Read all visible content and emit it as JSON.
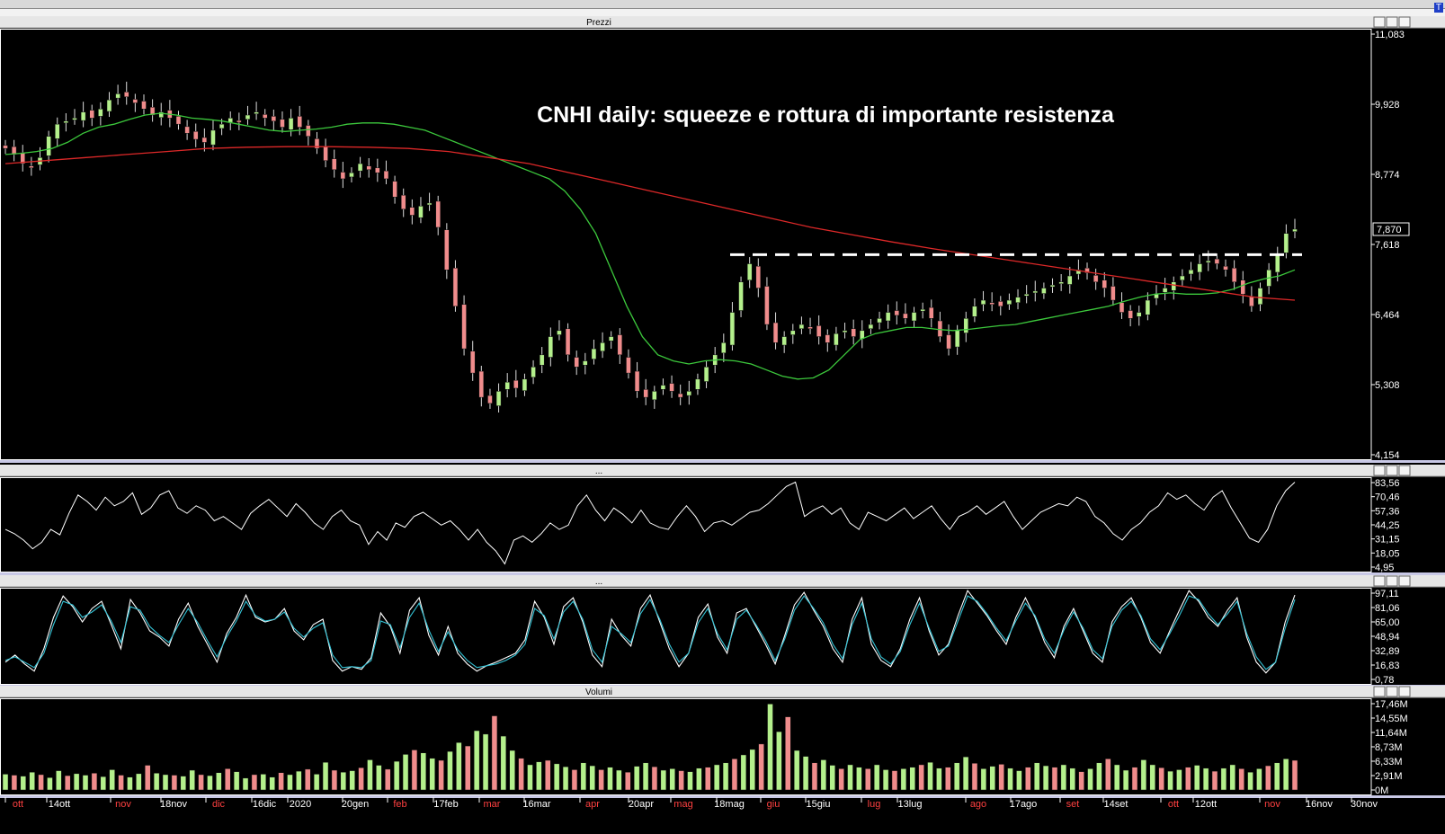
{
  "window": {
    "corner_label": "T",
    "panels": [
      {
        "id": "prices",
        "title": "Prezzi"
      },
      {
        "id": "osc1",
        "title": "..."
      },
      {
        "id": "osc2",
        "title": "..."
      },
      {
        "id": "volume",
        "title": "Volumi"
      }
    ]
  },
  "colors": {
    "background": "#000000",
    "panel_border": "#ffffff",
    "title_bar": "#e6e6e6",
    "candle_up": "#b4f08c",
    "candle_down": "#f08c8c",
    "ma_short": "#3cc83c",
    "ma_long": "#dc2828",
    "stoch_k": "#ffffff",
    "stoch_d": "#33c3d6",
    "month_label_red": "#ff4040",
    "date_label_white": "#ffffff"
  },
  "chart_data": [
    {
      "type": "candlestick",
      "title": "CNHI daily: squeeze e rottura di importante resistenza",
      "last_price_label": "7,870",
      "y_ticks": [
        "11,083",
        "9,928",
        "8,774",
        "7,618",
        "6,464",
        "5,308",
        "4,154"
      ],
      "ylim": [
        4.154,
        11.083
      ],
      "resistance_level": 7.45,
      "close_series": [
        9.2,
        9.1,
        8.95,
        8.9,
        9.05,
        9.4,
        9.6,
        9.65,
        9.7,
        9.8,
        9.7,
        9.85,
        10.0,
        10.1,
        10.05,
        9.95,
        9.85,
        9.75,
        9.8,
        9.7,
        9.6,
        9.45,
        9.35,
        9.3,
        9.5,
        9.6,
        9.7,
        9.65,
        9.75,
        9.8,
        9.7,
        9.65,
        9.55,
        9.7,
        9.55,
        9.4,
        9.2,
        9.0,
        8.85,
        8.7,
        8.8,
        8.95,
        8.85,
        8.8,
        8.7,
        8.4,
        8.2,
        8.1,
        8.25,
        8.3,
        7.9,
        7.2,
        6.6,
        5.9,
        5.5,
        5.1,
        5.0,
        5.2,
        5.35,
        5.25,
        5.4,
        5.6,
        5.8,
        6.1,
        6.2,
        5.8,
        5.6,
        5.7,
        5.9,
        6.0,
        6.1,
        5.8,
        5.5,
        5.2,
        5.1,
        5.2,
        5.3,
        5.2,
        5.1,
        5.2,
        5.4,
        5.6,
        5.8,
        6.0,
        6.5,
        7.0,
        7.3,
        6.9,
        6.3,
        6.0,
        6.1,
        6.2,
        6.3,
        6.25,
        6.1,
        6.0,
        6.15,
        6.2,
        6.1,
        6.2,
        6.3,
        6.4,
        6.5,
        6.45,
        6.4,
        6.5,
        6.55,
        6.4,
        6.1,
        5.9,
        6.2,
        6.4,
        6.6,
        6.7,
        6.65,
        6.6,
        6.7,
        6.75,
        6.8,
        6.85,
        6.9,
        6.95,
        7.0,
        7.1,
        7.2,
        7.15,
        7.0,
        6.9,
        6.7,
        6.5,
        6.4,
        6.5,
        6.7,
        6.8,
        6.9,
        7.0,
        7.1,
        7.2,
        7.3,
        7.35,
        7.3,
        7.2,
        7.0,
        6.8,
        6.6,
        6.9,
        7.2,
        7.45,
        7.8,
        7.87
      ],
      "ma_short_series": [
        9.1,
        9.12,
        9.15,
        9.2,
        9.3,
        9.45,
        9.55,
        9.6,
        9.68,
        9.75,
        9.78,
        9.75,
        9.7,
        9.68,
        9.65,
        9.6,
        9.55,
        9.5,
        9.48,
        9.5,
        9.52,
        9.55,
        9.6,
        9.62,
        9.62,
        9.6,
        9.55,
        9.5,
        9.4,
        9.3,
        9.2,
        9.1,
        9.0,
        8.9,
        8.8,
        8.7,
        8.5,
        8.2,
        7.8,
        7.2,
        6.6,
        6.1,
        5.8,
        5.7,
        5.65,
        5.7,
        5.72,
        5.7,
        5.65,
        5.55,
        5.45,
        5.4,
        5.42,
        5.55,
        5.8,
        6.05,
        6.15,
        6.2,
        6.25,
        6.25,
        6.22,
        6.2,
        6.22,
        6.25,
        6.28,
        6.3,
        6.35,
        6.4,
        6.45,
        6.5,
        6.55,
        6.6,
        6.68,
        6.75,
        6.8,
        6.82,
        6.8,
        6.8,
        6.82,
        6.88,
        6.98,
        7.05,
        7.1,
        7.2
      ],
      "ma_long_series": [
        8.95,
        9.0,
        9.05,
        9.1,
        9.15,
        9.2,
        9.22,
        9.23,
        9.23,
        9.22,
        9.2,
        9.15,
        9.05,
        8.95,
        8.8,
        8.65,
        8.5,
        8.35,
        8.2,
        8.05,
        7.9,
        7.78,
        7.66,
        7.55,
        7.45,
        7.35,
        7.25,
        7.15,
        7.05,
        6.95,
        6.85,
        6.75,
        6.7
      ],
      "x_labels": [
        {
          "text": "ott",
          "color": "red"
        },
        {
          "text": "14ott",
          "color": "white"
        },
        {
          "text": "nov",
          "color": "red"
        },
        {
          "text": "18nov",
          "color": "white"
        },
        {
          "text": "dic",
          "color": "red"
        },
        {
          "text": "16dic",
          "color": "white"
        },
        {
          "text": "2020",
          "color": "white"
        },
        {
          "text": "20gen",
          "color": "white"
        },
        {
          "text": "feb",
          "color": "red"
        },
        {
          "text": "17feb",
          "color": "white"
        },
        {
          "text": "mar",
          "color": "red"
        },
        {
          "text": "16mar",
          "color": "white"
        },
        {
          "text": "apr",
          "color": "red"
        },
        {
          "text": "20apr",
          "color": "white"
        },
        {
          "text": "mag",
          "color": "red"
        },
        {
          "text": "18mag",
          "color": "white"
        },
        {
          "text": "giu",
          "color": "red"
        },
        {
          "text": "15giu",
          "color": "white"
        },
        {
          "text": "lug",
          "color": "red"
        },
        {
          "text": "13lug",
          "color": "white"
        },
        {
          "text": "ago",
          "color": "red"
        },
        {
          "text": "17ago",
          "color": "white"
        },
        {
          "text": "set",
          "color": "red"
        },
        {
          "text": "14set",
          "color": "white"
        },
        {
          "text": "ott",
          "color": "red"
        },
        {
          "text": "12ott",
          "color": "white"
        },
        {
          "text": "nov",
          "color": "red"
        },
        {
          "text": "16nov",
          "color": "white"
        },
        {
          "text": "30nov",
          "color": "white"
        }
      ]
    },
    {
      "type": "line",
      "y_ticks": [
        "83,56",
        "70,46",
        "57,36",
        "44,25",
        "31,15",
        "18,05",
        "4,95"
      ],
      "ylim": [
        4.95,
        83.56
      ],
      "values": [
        40,
        36,
        30,
        22,
        28,
        40,
        35,
        55,
        72,
        66,
        58,
        70,
        62,
        66,
        74,
        54,
        60,
        72,
        76,
        60,
        55,
        62,
        58,
        48,
        52,
        46,
        40,
        55,
        62,
        68,
        60,
        52,
        64,
        56,
        46,
        40,
        52,
        58,
        48,
        44,
        26,
        38,
        30,
        46,
        42,
        52,
        56,
        50,
        44,
        48,
        40,
        30,
        40,
        28,
        20,
        8,
        30,
        34,
        28,
        36,
        46,
        40,
        44,
        62,
        72,
        58,
        48,
        60,
        54,
        46,
        58,
        46,
        42,
        40,
        52,
        62,
        52,
        38,
        46,
        48,
        44,
        50,
        56,
        58,
        64,
        72,
        80,
        84,
        52,
        58,
        62,
        54,
        60,
        46,
        40,
        56,
        52,
        48,
        54,
        60,
        50,
        56,
        62,
        50,
        40,
        52,
        56,
        62,
        54,
        60,
        66,
        52,
        40,
        48,
        56,
        60,
        64,
        62,
        70,
        66,
        52,
        46,
        36,
        30,
        40,
        46,
        56,
        62,
        74,
        68,
        72,
        64,
        58,
        70,
        76,
        60,
        46,
        32,
        28,
        40,
        62,
        76,
        84
      ]
    },
    {
      "type": "line",
      "y_ticks": [
        "97,11",
        "81,06",
        "65,00",
        "48,94",
        "32,89",
        "16,83",
        "0,78"
      ],
      "ylim": [
        0.78,
        97.11
      ],
      "series": [
        {
          "values": [
            20,
            28,
            18,
            10,
            35,
            70,
            94,
            82,
            65,
            80,
            88,
            62,
            35,
            90,
            75,
            55,
            48,
            38,
            68,
            86,
            60,
            40,
            20,
            52,
            70,
            95,
            70,
            65,
            68,
            80,
            55,
            45,
            62,
            68,
            22,
            10,
            15,
            12,
            25,
            75,
            60,
            30,
            78,
            92,
            50,
            28,
            60,
            30,
            18,
            10,
            16,
            20,
            25,
            30,
            45,
            88,
            70,
            40,
            82,
            92,
            65,
            28,
            15,
            68,
            50,
            38,
            80,
            95,
            65,
            35,
            15,
            30,
            70,
            85,
            48,
            30,
            75,
            80,
            60,
            40,
            18,
            50,
            84,
            98,
            78,
            60,
            35,
            20,
            68,
            92,
            40,
            22,
            15,
            35,
            68,
            92,
            55,
            28,
            40,
            72,
            100,
            86,
            72,
            55,
            40,
            70,
            92,
            70,
            42,
            25,
            60,
            80,
            55,
            30,
            20,
            65,
            82,
            92,
            70,
            42,
            30,
            55,
            78,
            100,
            88,
            70,
            60,
            78,
            92,
            48,
            20,
            8,
            20,
            65,
            95
          ]
        },
        {
          "values": [
            22,
            26,
            20,
            14,
            30,
            62,
            88,
            84,
            70,
            76,
            84,
            66,
            42,
            82,
            78,
            60,
            50,
            42,
            62,
            80,
            64,
            44,
            26,
            48,
            66,
            88,
            72,
            66,
            68,
            76,
            58,
            48,
            58,
            64,
            28,
            14,
            15,
            14,
            22,
            66,
            62,
            36,
            70,
            86,
            56,
            32,
            54,
            34,
            22,
            14,
            16,
            18,
            22,
            28,
            40,
            80,
            72,
            46,
            76,
            88,
            68,
            34,
            20,
            60,
            52,
            42,
            74,
            90,
            68,
            40,
            20,
            30,
            64,
            80,
            52,
            34,
            68,
            78,
            62,
            44,
            22,
            46,
            78,
            94,
            80,
            64,
            40,
            24,
            62,
            86,
            46,
            26,
            18,
            32,
            62,
            86,
            58,
            32,
            38,
            66,
            94,
            88,
            74,
            58,
            44,
            66,
            86,
            72,
            46,
            30,
            56,
            76,
            58,
            34,
            24,
            60,
            78,
            88,
            72,
            46,
            34,
            52,
            72,
            94,
            90,
            74,
            62,
            74,
            88,
            52,
            26,
            12,
            20,
            58,
            90
          ]
        }
      ]
    },
    {
      "type": "bar",
      "y_ticks": [
        "17,46M",
        "14,55M",
        "11,64M",
        "8,73M",
        "6,33M",
        "2,91M",
        "0M"
      ],
      "ylim": [
        0,
        17.46
      ],
      "values": [
        3.2,
        3.0,
        2.8,
        3.6,
        3.1,
        2.5,
        3.9,
        2.9,
        3.3,
        3.0,
        3.4,
        2.7,
        4.1,
        3.0,
        2.6,
        3.3,
        5.0,
        3.4,
        3.1,
        3.0,
        2.8,
        4.0,
        3.1,
        2.9,
        3.5,
        4.3,
        3.7,
        2.4,
        3.1,
        3.2,
        2.6,
        3.5,
        3.1,
        3.8,
        4.2,
        3.2,
        5.6,
        4.0,
        3.6,
        3.9,
        4.5,
        6.1,
        5.0,
        4.2,
        5.8,
        7.2,
        8.1,
        7.5,
        6.4,
        6.0,
        7.8,
        9.6,
        8.9,
        12.0,
        11.3,
        15.0,
        10.9,
        8.0,
        6.4,
        5.1,
        5.7,
        6.0,
        5.3,
        4.7,
        4.1,
        5.5,
        4.9,
        4.1,
        4.6,
        4.0,
        3.6,
        4.8,
        5.5,
        4.7,
        4.0,
        4.3,
        3.9,
        3.7,
        4.4,
        4.6,
        5.1,
        5.5,
        6.3,
        7.1,
        8.2,
        9.3,
        17.4,
        11.8,
        14.8,
        8.0,
        6.8,
        5.5,
        6.1,
        5.0,
        4.3,
        5.1,
        4.6,
        4.3,
        5.1,
        4.1,
        3.9,
        4.3,
        4.6,
        5.1,
        5.6,
        4.4,
        4.6,
        5.5,
        6.7,
        5.4,
        4.3,
        4.8,
        5.2,
        4.4,
        3.9,
        4.6,
        5.5,
        4.9,
        4.6,
        5.1,
        4.4,
        3.7,
        4.3,
        5.5,
        6.3,
        5.1,
        4.0,
        4.6,
        6.1,
        5.1,
        4.5,
        3.8,
        4.1,
        4.6,
        5.0,
        4.4,
        3.8,
        4.4,
        5.1,
        4.3,
        3.6,
        4.3,
        4.9,
        5.5,
        6.3,
        6.0
      ]
    }
  ]
}
